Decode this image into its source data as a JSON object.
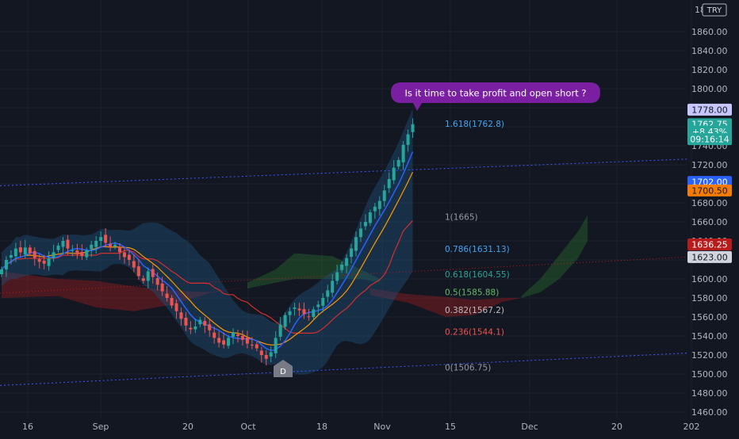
{
  "currency": "TRY",
  "axis_top_partial": "18",
  "annotation": "Is it time to take profit and open short ?",
  "series_marker": "D",
  "chart_data": {
    "type": "candlestick",
    "title": "",
    "xlabel": "",
    "ylabel": "",
    "ylim": [
      1450,
      1880
    ],
    "x_ticks": [
      "16",
      "Sep",
      "20",
      "Oct",
      "18",
      "Nov",
      "15",
      "Dec",
      "20",
      "202"
    ],
    "y_ticks": [
      1460,
      1480,
      1500,
      1520,
      1540,
      1560,
      1580,
      1600,
      1620,
      1640,
      1660,
      1680,
      1700,
      1720,
      1740,
      1760,
      1780,
      1800,
      1820,
      1840,
      1860
    ],
    "closes": [
      1610,
      1620,
      1625,
      1632,
      1628,
      1633,
      1627,
      1622,
      1618,
      1616,
      1622,
      1628,
      1635,
      1640,
      1632,
      1630,
      1626,
      1624,
      1630,
      1636,
      1640,
      1644,
      1638,
      1633,
      1636,
      1628,
      1623,
      1620,
      1612,
      1603,
      1598,
      1608,
      1602,
      1594,
      1587,
      1580,
      1572,
      1566,
      1558,
      1551,
      1547,
      1550,
      1557,
      1551,
      1546,
      1538,
      1533,
      1531,
      1538,
      1544,
      1540,
      1536,
      1532,
      1530,
      1527,
      1520,
      1516,
      1523,
      1538,
      1552,
      1562,
      1566,
      1570,
      1567,
      1563,
      1560,
      1568,
      1573,
      1580,
      1588,
      1598,
      1607,
      1615,
      1622,
      1632,
      1644,
      1653,
      1660,
      1670,
      1676,
      1682,
      1693,
      1705,
      1717,
      1725,
      1741,
      1752,
      1762.75
    ],
    "price_labels": [
      {
        "value": "1778.00",
        "price": 1778,
        "bg": "#c8c6ff",
        "fg": "#131722"
      },
      {
        "value": "1762.75",
        "price": 1762.75,
        "bg": "#26a69a",
        "fg": "#ffffff"
      },
      {
        "value": "+8.43%",
        "price": 1755,
        "bg": "#26a69a",
        "fg": "#ffffff"
      },
      {
        "value": "09:16:14",
        "price": 1747,
        "bg": "#26a69a",
        "fg": "#ffffff"
      },
      {
        "value": "1702.00",
        "price": 1702,
        "bg": "#2962ff",
        "fg": "#ffffff"
      },
      {
        "value": "1700.50",
        "price": 1693,
        "bg": "#f57c00",
        "fg": "#131722"
      },
      {
        "value": "1636.25",
        "price": 1636.25,
        "bg": "#b71c1c",
        "fg": "#ffffff"
      },
      {
        "value": "1623.00",
        "price": 1623,
        "bg": "#d1d4dc",
        "fg": "#131722"
      }
    ],
    "fib_levels": [
      {
        "ratio": "1.618",
        "price": 1762.8,
        "label": "1.618(1762.8)",
        "color": "#42a5f5"
      },
      {
        "ratio": "1",
        "price": 1665,
        "label": "1(1665)",
        "color": "#9598a1"
      },
      {
        "ratio": "0.786",
        "price": 1631.13,
        "label": "0.786(1631.13)",
        "color": "#42a5f5"
      },
      {
        "ratio": "0.618",
        "price": 1604.55,
        "label": "0.618(1604.55)",
        "color": "#26a69a"
      },
      {
        "ratio": "0.5",
        "price": 1585.88,
        "label": "0.5(1585.88)",
        "color": "#66bb6a"
      },
      {
        "ratio": "0.382",
        "price": 1567.2,
        "label": "0.382(1567.2)",
        "color": "#bdbdbd"
      },
      {
        "ratio": "0.236",
        "price": 1544.1,
        "label": "0.236(1544.1)",
        "color": "#ef5350"
      },
      {
        "ratio": "0",
        "price": 1506.75,
        "label": "0(1506.75)",
        "color": "#9598a1"
      }
    ],
    "colors": {
      "up": "#26a69a",
      "down": "#ef5350",
      "band": "#1e4d78",
      "fast_ma": "#2962ff",
      "slow_ma": "#ff9800",
      "base_line": "#d32f2f",
      "cloud_bull": "#2e7d32",
      "cloud_bear": "#b71c1c",
      "channel": "#3d5afe"
    }
  }
}
